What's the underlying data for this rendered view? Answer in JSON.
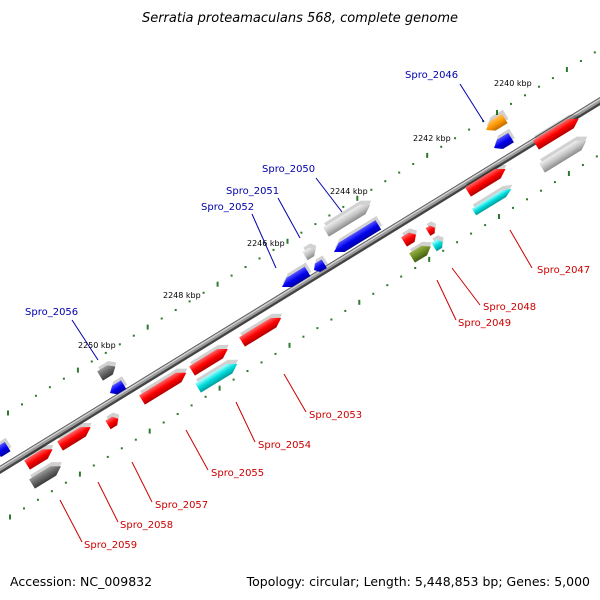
{
  "title": "Serratia proteamaculans 568, complete genome",
  "footer": {
    "accession": "Accession: NC_009832",
    "summary": "Topology: circular; Length: 5,448,853 bp; Genes: 5,000"
  },
  "colors": {
    "forward": "#ff0000",
    "reverse": "#0000ee",
    "label_forward": "#cc0000",
    "label_reverse": "#0000aa",
    "backbone": "#888888",
    "tick_major": "#2d7a2d",
    "tick_minor": "#2d7a2d"
  },
  "ticks": [
    {
      "label": "2240 kbp"
    },
    {
      "label": "2242 kbp"
    },
    {
      "label": "2244 kbp"
    },
    {
      "label": "2246 kbp"
    },
    {
      "label": "2248 kbp"
    },
    {
      "label": "2250 kbp"
    }
  ],
  "gene_labels": [
    {
      "name": "Spro_2046",
      "strand": "reverse"
    },
    {
      "name": "Spro_2047",
      "strand": "forward"
    },
    {
      "name": "Spro_2048",
      "strand": "forward"
    },
    {
      "name": "Spro_2049",
      "strand": "forward"
    },
    {
      "name": "Spro_2050",
      "strand": "reverse"
    },
    {
      "name": "Spro_2051",
      "strand": "reverse"
    },
    {
      "name": "Spro_2052",
      "strand": "reverse"
    },
    {
      "name": "Spro_2053",
      "strand": "forward"
    },
    {
      "name": "Spro_2054",
      "strand": "forward"
    },
    {
      "name": "Spro_2055",
      "strand": "forward"
    },
    {
      "name": "Spro_2056",
      "strand": "reverse"
    },
    {
      "name": "Spro_2057",
      "strand": "forward"
    },
    {
      "name": "Spro_2058",
      "strand": "forward"
    },
    {
      "name": "Spro_2059",
      "strand": "forward"
    }
  ]
}
